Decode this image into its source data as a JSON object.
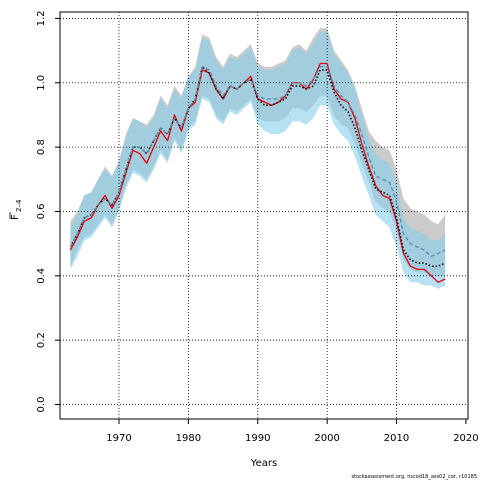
{
  "chart_data": {
    "type": "line",
    "title": "",
    "xlabel": "Years",
    "ylabel_main": "F",
    "ylabel_sub": "2–4",
    "xlim": [
      1961.5,
      2020.3
    ],
    "ylim": [
      -0.045,
      1.22
    ],
    "xticks": [
      1970,
      1980,
      1990,
      2000,
      2010,
      2020
    ],
    "yticks": [
      0.0,
      0.2,
      0.4,
      0.6,
      0.8,
      1.0,
      1.2
    ],
    "ytick_labels": [
      "0.0",
      "0.2",
      "0.4",
      "0.6",
      "0.8",
      "1.0",
      "1.2"
    ],
    "grid": true,
    "x": [
      1963,
      1964,
      1965,
      1966,
      1967,
      1968,
      1969,
      1970,
      1971,
      1972,
      1973,
      1974,
      1975,
      1976,
      1977,
      1978,
      1979,
      1980,
      1981,
      1982,
      1983,
      1984,
      1985,
      1986,
      1987,
      1988,
      1989,
      1990,
      1991,
      1992,
      1993,
      1994,
      1995,
      1996,
      1997,
      1998,
      1999,
      2000,
      2001,
      2002,
      2003,
      2004,
      2005,
      2006,
      2007,
      2008,
      2009,
      2010,
      2011,
      2012,
      2013,
      2014,
      2015,
      2016,
      2017
    ],
    "series": [
      {
        "style": "red-solid",
        "color": "#e8000b",
        "values": [
          0.48,
          0.52,
          0.57,
          0.58,
          0.62,
          0.65,
          0.61,
          0.65,
          0.72,
          0.79,
          0.78,
          0.75,
          0.8,
          0.85,
          0.82,
          0.9,
          0.85,
          0.92,
          0.94,
          1.04,
          1.03,
          0.98,
          0.95,
          0.99,
          0.98,
          1.0,
          1.02,
          0.95,
          0.94,
          0.93,
          0.94,
          0.96,
          1.0,
          1.0,
          0.98,
          1.01,
          1.06,
          1.06,
          0.98,
          0.95,
          0.94,
          0.89,
          0.81,
          0.74,
          0.68,
          0.65,
          0.64,
          0.57,
          0.47,
          0.43,
          0.42,
          0.42,
          0.4,
          0.38,
          0.39
        ]
      },
      {
        "style": "black-dotted",
        "color": "#000000",
        "values": [
          0.49,
          0.53,
          0.58,
          0.59,
          0.62,
          0.64,
          0.62,
          0.66,
          0.73,
          0.8,
          0.8,
          0.78,
          0.82,
          0.86,
          0.84,
          0.89,
          0.86,
          0.92,
          0.95,
          1.05,
          1.03,
          0.98,
          0.95,
          0.99,
          0.98,
          1.0,
          1.01,
          0.95,
          0.93,
          0.93,
          0.94,
          0.95,
          0.99,
          0.99,
          0.98,
          0.99,
          1.04,
          1.04,
          0.97,
          0.93,
          0.91,
          0.86,
          0.79,
          0.73,
          0.67,
          0.66,
          0.65,
          0.58,
          0.48,
          0.45,
          0.44,
          0.44,
          0.43,
          0.43,
          0.44
        ]
      },
      {
        "style": "blue-dashed",
        "color": "#5f8fa8",
        "values": [
          0.49,
          0.53,
          0.58,
          0.59,
          0.62,
          0.64,
          0.62,
          0.66,
          0.73,
          0.8,
          0.8,
          0.78,
          0.82,
          0.86,
          0.84,
          0.89,
          0.86,
          0.92,
          0.95,
          1.05,
          1.04,
          0.99,
          0.96,
          0.99,
          0.98,
          1.0,
          1.01,
          0.96,
          0.95,
          0.95,
          0.95,
          0.96,
          1.0,
          1.0,
          0.99,
          1.01,
          1.05,
          1.05,
          0.99,
          0.96,
          0.94,
          0.9,
          0.84,
          0.77,
          0.71,
          0.7,
          0.69,
          0.63,
          0.53,
          0.5,
          0.49,
          0.48,
          0.46,
          0.47,
          0.48
        ]
      }
    ],
    "bands": [
      {
        "name": "grey",
        "color": "#a9a9a9",
        "upper": [
          0.57,
          0.6,
          0.65,
          0.66,
          0.7,
          0.74,
          0.71,
          0.76,
          0.84,
          0.89,
          0.88,
          0.87,
          0.9,
          0.96,
          0.93,
          0.99,
          0.96,
          1.02,
          1.05,
          1.15,
          1.14,
          1.08,
          1.05,
          1.09,
          1.08,
          1.1,
          1.12,
          1.06,
          1.05,
          1.05,
          1.06,
          1.07,
          1.11,
          1.12,
          1.1,
          1.14,
          1.17,
          1.17,
          1.1,
          1.07,
          1.04,
          0.99,
          0.92,
          0.85,
          0.82,
          0.8,
          0.79,
          0.73,
          0.64,
          0.61,
          0.6,
          0.59,
          0.57,
          0.56,
          0.59
        ],
        "lower": [
          0.43,
          0.48,
          0.52,
          0.53,
          0.56,
          0.59,
          0.56,
          0.61,
          0.68,
          0.73,
          0.72,
          0.7,
          0.74,
          0.79,
          0.76,
          0.83,
          0.79,
          0.86,
          0.88,
          0.96,
          0.95,
          0.9,
          0.88,
          0.92,
          0.91,
          0.93,
          0.95,
          0.89,
          0.88,
          0.88,
          0.88,
          0.89,
          0.92,
          0.92,
          0.91,
          0.93,
          0.96,
          0.96,
          0.9,
          0.87,
          0.86,
          0.81,
          0.75,
          0.69,
          0.63,
          0.61,
          0.6,
          0.54,
          0.45,
          0.42,
          0.41,
          0.41,
          0.4,
          0.4,
          0.4
        ]
      },
      {
        "name": "blue",
        "color": "#87ceeb",
        "upper": [
          0.55,
          0.59,
          0.65,
          0.66,
          0.7,
          0.73,
          0.71,
          0.75,
          0.83,
          0.89,
          0.88,
          0.86,
          0.89,
          0.95,
          0.92,
          0.98,
          0.95,
          1.02,
          1.04,
          1.14,
          1.13,
          1.07,
          1.04,
          1.08,
          1.07,
          1.09,
          1.11,
          1.05,
          1.04,
          1.04,
          1.05,
          1.06,
          1.1,
          1.11,
          1.09,
          1.12,
          1.16,
          1.16,
          1.09,
          1.06,
          1.03,
          0.98,
          0.9,
          0.83,
          0.78,
          0.76,
          0.75,
          0.69,
          0.58,
          0.55,
          0.54,
          0.53,
          0.51,
          0.51,
          0.53
        ],
        "lower": [
          0.42,
          0.46,
          0.51,
          0.52,
          0.55,
          0.58,
          0.55,
          0.6,
          0.67,
          0.72,
          0.71,
          0.69,
          0.73,
          0.78,
          0.75,
          0.82,
          0.78,
          0.85,
          0.87,
          0.95,
          0.94,
          0.89,
          0.87,
          0.91,
          0.9,
          0.92,
          0.94,
          0.87,
          0.85,
          0.84,
          0.84,
          0.85,
          0.88,
          0.88,
          0.87,
          0.89,
          0.93,
          0.93,
          0.87,
          0.84,
          0.82,
          0.77,
          0.71,
          0.65,
          0.59,
          0.57,
          0.55,
          0.49,
          0.41,
          0.38,
          0.38,
          0.37,
          0.37,
          0.36,
          0.37
        ]
      }
    ]
  },
  "footer": "stockassessment.org, nscod18_ass02_cor, r10185"
}
